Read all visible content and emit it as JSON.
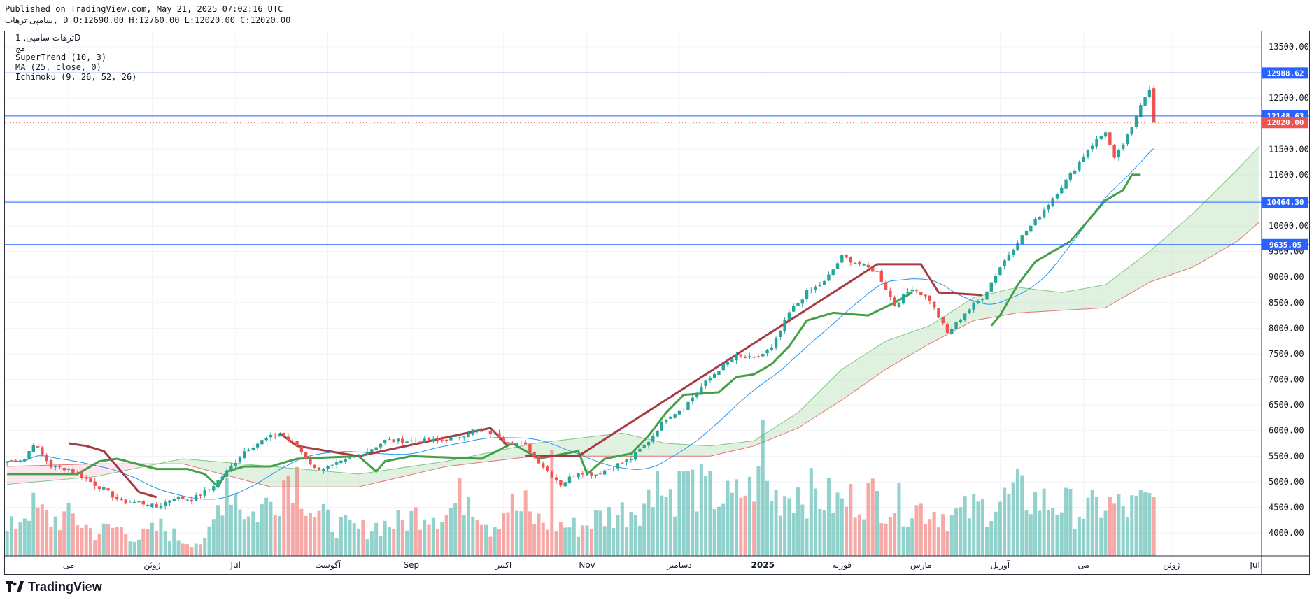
{
  "header": {
    "published": "Published on TradingView.com, May 21, 2025 07:02:16 UTC",
    "symbol": "سامپی ترهات",
    "ohlc": ", D O:12690.00 H:12760.00 L:12020.00 C:12020.00"
  },
  "legend": {
    "title": "ترهات سامپی, 1D",
    "subtitle": "مج",
    "indicators": [
      "SuperTrend (10, 3)",
      "MA (25, close, 0)",
      "Ichimoku (9, 26, 52, 26)"
    ]
  },
  "footer": {
    "brand": "TradingView",
    "logo_icon": "tradingview-logo-icon"
  },
  "colors": {
    "up": "#26a69a",
    "down": "#ef5350",
    "hline": "#2962ff",
    "ma": "#2196f3",
    "supertrend_up": "#43a047",
    "supertrend_down": "#a53b45",
    "cloud_green": "#a5d6a7",
    "cloud_red": "#f8bbd0"
  },
  "chart_data": {
    "type": "candlestick",
    "y_axis": {
      "ticks": [
        4000,
        4500,
        5000,
        5500,
        6000,
        6500,
        7000,
        7500,
        8000,
        8500,
        9000,
        9500,
        10000,
        10500,
        11000,
        11500,
        12000,
        12500,
        13000,
        13500
      ],
      "tick_labels": [
        "4000.00",
        "4500.00",
        "5000.00",
        "5500.00",
        "6000.00",
        "6500.00",
        "7000.00",
        "7500.00",
        "8000.00",
        "8500.00",
        "9000.00",
        "9500.00",
        "10000.00",
        "10500.00",
        "11000.00",
        "11500.00",
        "12000.00",
        "12500.00",
        "13000.00",
        "13500.00"
      ],
      "ylim": [
        3550,
        13800
      ]
    },
    "x_axis": {
      "labels": [
        "می",
        "ژوئن",
        "Jul",
        "آگوست",
        "Sep",
        "اکتبر",
        "Nov",
        "دسامبر",
        "2025",
        "فوریه",
        "مارس",
        "آوریل",
        "می",
        "ژوئن",
        "Jul"
      ],
      "label_index": [
        14,
        33,
        52,
        73,
        92,
        113,
        132,
        153,
        172,
        190,
        208,
        226,
        245,
        265,
        284
      ],
      "bold": [
        "2025"
      ],
      "n_bars": 286
    },
    "horizontal_levels": [
      12988.62,
      12148.63,
      10464.3,
      9635.05
    ],
    "level_labels": [
      "12988.62",
      "12148.63",
      "10464.30",
      "9635.05"
    ],
    "last_price": 12020.0,
    "last_price_label": "12020.00",
    "ohlc_last": {
      "open": 12690.0,
      "high": 12760.0,
      "low": 12020.0,
      "close": 12020.0
    },
    "price_anchors": [
      [
        0,
        5400
      ],
      [
        4,
        5450
      ],
      [
        6,
        5750
      ],
      [
        10,
        5300
      ],
      [
        14,
        5250
      ],
      [
        18,
        5050
      ],
      [
        22,
        4850
      ],
      [
        26,
        4600
      ],
      [
        30,
        4600
      ],
      [
        34,
        4500
      ],
      [
        38,
        4700
      ],
      [
        42,
        4650
      ],
      [
        46,
        4850
      ],
      [
        50,
        5200
      ],
      [
        54,
        5600
      ],
      [
        58,
        5800
      ],
      [
        62,
        5950
      ],
      [
        66,
        5700
      ],
      [
        70,
        5250
      ],
      [
        74,
        5300
      ],
      [
        78,
        5450
      ],
      [
        82,
        5600
      ],
      [
        86,
        5800
      ],
      [
        90,
        5800
      ],
      [
        94,
        5800
      ],
      [
        98,
        5800
      ],
      [
        102,
        5850
      ],
      [
        106,
        6000
      ],
      [
        110,
        5950
      ],
      [
        114,
        5800
      ],
      [
        118,
        5700
      ],
      [
        122,
        5300
      ],
      [
        126,
        4950
      ],
      [
        130,
        5200
      ],
      [
        134,
        5150
      ],
      [
        138,
        5300
      ],
      [
        142,
        5450
      ],
      [
        146,
        5800
      ],
      [
        150,
        6250
      ],
      [
        154,
        6450
      ],
      [
        158,
        6850
      ],
      [
        162,
        7200
      ],
      [
        166,
        7450
      ],
      [
        170,
        7400
      ],
      [
        174,
        7600
      ],
      [
        178,
        8300
      ],
      [
        182,
        8700
      ],
      [
        186,
        8900
      ],
      [
        190,
        9400
      ],
      [
        194,
        9250
      ],
      [
        198,
        9100
      ],
      [
        202,
        8450
      ],
      [
        206,
        8800
      ],
      [
        210,
        8550
      ],
      [
        214,
        7900
      ],
      [
        218,
        8300
      ],
      [
        222,
        8600
      ],
      [
        226,
        9200
      ],
      [
        230,
        9700
      ],
      [
        234,
        10100
      ],
      [
        238,
        10550
      ],
      [
        242,
        11000
      ],
      [
        246,
        11500
      ],
      [
        250,
        11850
      ],
      [
        252,
        11300
      ],
      [
        256,
        11900
      ],
      [
        258,
        12400
      ],
      [
        260,
        12700
      ],
      [
        261,
        12100
      ]
    ],
    "supertrend_up": [
      [
        0,
        5150
      ],
      [
        16,
        5150
      ],
      [
        21,
        5400
      ],
      [
        25,
        5450
      ],
      [
        34,
        5250
      ],
      [
        41,
        5250
      ],
      [
        45,
        5150
      ],
      [
        48,
        4900
      ],
      [
        50,
        5200
      ],
      [
        54,
        5300
      ],
      [
        60,
        5300
      ],
      [
        66,
        5450
      ],
      [
        80,
        5500
      ],
      [
        84,
        5200
      ],
      [
        86,
        5400
      ],
      [
        92,
        5500
      ],
      [
        108,
        5450
      ],
      [
        115,
        5750
      ],
      [
        121,
        5450
      ],
      [
        130,
        5600
      ],
      [
        132,
        5150
      ],
      [
        136,
        5450
      ],
      [
        142,
        5550
      ],
      [
        146,
        5900
      ],
      [
        150,
        6350
      ],
      [
        154,
        6700
      ],
      [
        162,
        6750
      ],
      [
        166,
        7050
      ],
      [
        170,
        7100
      ],
      [
        174,
        7300
      ],
      [
        178,
        7650
      ],
      [
        182,
        8150
      ],
      [
        188,
        8300
      ],
      [
        196,
        8250
      ],
      [
        202,
        8500
      ],
      [
        206,
        8700
      ]
    ],
    "supertrend_up2": [
      [
        224,
        8050
      ],
      [
        226,
        8250
      ],
      [
        230,
        8850
      ],
      [
        234,
        9300
      ],
      [
        238,
        9500
      ],
      [
        242,
        9700
      ],
      [
        246,
        10100
      ],
      [
        250,
        10500
      ],
      [
        254,
        10700
      ],
      [
        256,
        11000
      ],
      [
        258,
        11000
      ]
    ],
    "supertrend_down": [
      [
        14,
        5750
      ],
      [
        18,
        5700
      ],
      [
        22,
        5600
      ],
      [
        26,
        5200
      ],
      [
        30,
        4800
      ],
      [
        34,
        4700
      ],
      [
        62,
        5950
      ],
      [
        66,
        5700
      ],
      [
        80,
        5500
      ],
      [
        110,
        6050
      ],
      [
        114,
        5700
      ],
      [
        118,
        5500
      ],
      [
        130,
        5500
      ],
      [
        198,
        9250
      ],
      [
        208,
        9250
      ],
      [
        212,
        8700
      ],
      [
        222,
        8650
      ]
    ],
    "ichimoku_a": [
      [
        0,
        4950
      ],
      [
        20,
        5100
      ],
      [
        40,
        5450
      ],
      [
        60,
        5300
      ],
      [
        80,
        5150
      ],
      [
        100,
        5400
      ],
      [
        120,
        5750
      ],
      [
        140,
        5950
      ],
      [
        150,
        5750
      ],
      [
        160,
        5700
      ],
      [
        170,
        5800
      ],
      [
        180,
        6350
      ],
      [
        190,
        7200
      ],
      [
        200,
        7750
      ],
      [
        210,
        8050
      ],
      [
        220,
        8600
      ],
      [
        230,
        8800
      ],
      [
        240,
        8700
      ],
      [
        250,
        8850
      ],
      [
        260,
        9500
      ],
      [
        270,
        10250
      ],
      [
        280,
        11100
      ],
      [
        286,
        11650
      ]
    ],
    "ichimoku_b": [
      [
        0,
        5300
      ],
      [
        20,
        5350
      ],
      [
        40,
        5350
      ],
      [
        60,
        4900
      ],
      [
        80,
        4900
      ],
      [
        100,
        5300
      ],
      [
        120,
        5500
      ],
      [
        140,
        5500
      ],
      [
        160,
        5500
      ],
      [
        170,
        5700
      ],
      [
        180,
        6050
      ],
      [
        190,
        6600
      ],
      [
        200,
        7200
      ],
      [
        210,
        7700
      ],
      [
        220,
        8150
      ],
      [
        230,
        8300
      ],
      [
        240,
        8350
      ],
      [
        250,
        8400
      ],
      [
        260,
        8900
      ],
      [
        270,
        9200
      ],
      [
        280,
        9700
      ],
      [
        286,
        10150
      ]
    ],
    "volume_anchors": [
      [
        0,
        0.18
      ],
      [
        5,
        0.38
      ],
      [
        10,
        0.28
      ],
      [
        15,
        0.3
      ],
      [
        20,
        0.18
      ],
      [
        25,
        0.22
      ],
      [
        30,
        0.14
      ],
      [
        35,
        0.22
      ],
      [
        40,
        0.12
      ],
      [
        45,
        0.1
      ],
      [
        47,
        0.26
      ],
      [
        50,
        0.62
      ],
      [
        55,
        0.3
      ],
      [
        60,
        0.42
      ],
      [
        65,
        0.7
      ],
      [
        70,
        0.32
      ],
      [
        75,
        0.24
      ],
      [
        80,
        0.2
      ],
      [
        85,
        0.24
      ],
      [
        90,
        0.26
      ],
      [
        95,
        0.36
      ],
      [
        100,
        0.32
      ],
      [
        105,
        0.52
      ],
      [
        110,
        0.22
      ],
      [
        114,
        0.4
      ],
      [
        120,
        0.28
      ],
      [
        125,
        0.24
      ],
      [
        130,
        0.22
      ],
      [
        135,
        0.3
      ],
      [
        140,
        0.34
      ],
      [
        145,
        0.42
      ],
      [
        150,
        0.48
      ],
      [
        155,
        0.56
      ],
      [
        160,
        0.48
      ],
      [
        165,
        0.42
      ],
      [
        170,
        0.58
      ],
      [
        175,
        0.46
      ],
      [
        180,
        0.52
      ],
      [
        185,
        0.46
      ],
      [
        190,
        0.4
      ],
      [
        195,
        0.48
      ],
      [
        200,
        0.42
      ],
      [
        205,
        0.38
      ],
      [
        210,
        0.36
      ],
      [
        215,
        0.3
      ],
      [
        220,
        0.36
      ],
      [
        225,
        0.4
      ],
      [
        230,
        0.48
      ],
      [
        235,
        0.42
      ],
      [
        240,
        0.4
      ],
      [
        245,
        0.34
      ],
      [
        250,
        0.4
      ],
      [
        255,
        0.36
      ],
      [
        260,
        0.42
      ]
    ],
    "volume_spikes": [
      [
        172,
        1.0
      ],
      [
        124,
        0.78
      ],
      [
        173,
        0.55
      ],
      [
        118,
        0.48
      ],
      [
        148,
        0.62
      ],
      [
        169,
        0.58
      ],
      [
        154,
        0.62
      ]
    ]
  }
}
